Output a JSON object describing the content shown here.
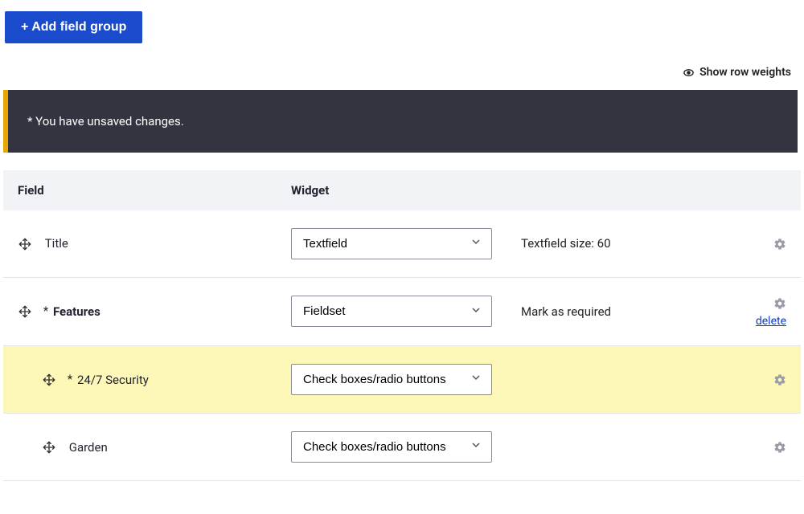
{
  "add_group_button": "+ Add field group",
  "show_row_weights": "Show row weights",
  "alert_message": "* You have unsaved changes.",
  "headers": {
    "field": "Field",
    "widget": "Widget"
  },
  "rows": [
    {
      "label": "Title",
      "required": false,
      "bold": false,
      "indent": 0,
      "widget": "Textfield",
      "info": "Textfield size: 60",
      "delete": false,
      "highlight": false
    },
    {
      "label": "Features",
      "required": true,
      "bold": true,
      "indent": 0,
      "widget": "Fieldset",
      "info": "Mark as required",
      "delete": true,
      "highlight": false
    },
    {
      "label": "24/7 Security",
      "required": true,
      "bold": false,
      "indent": 1,
      "widget": "Check boxes/radio buttons",
      "info": "",
      "delete": false,
      "highlight": true
    },
    {
      "label": "Garden",
      "required": false,
      "bold": false,
      "indent": 1,
      "widget": "Check boxes/radio buttons",
      "info": "",
      "delete": false,
      "highlight": false
    }
  ],
  "delete_label": "delete",
  "colors": {
    "primary": "#1a4bcc",
    "alert_bg": "#33343f",
    "alert_border": "#e6a700",
    "highlight": "#fdf8b8"
  }
}
